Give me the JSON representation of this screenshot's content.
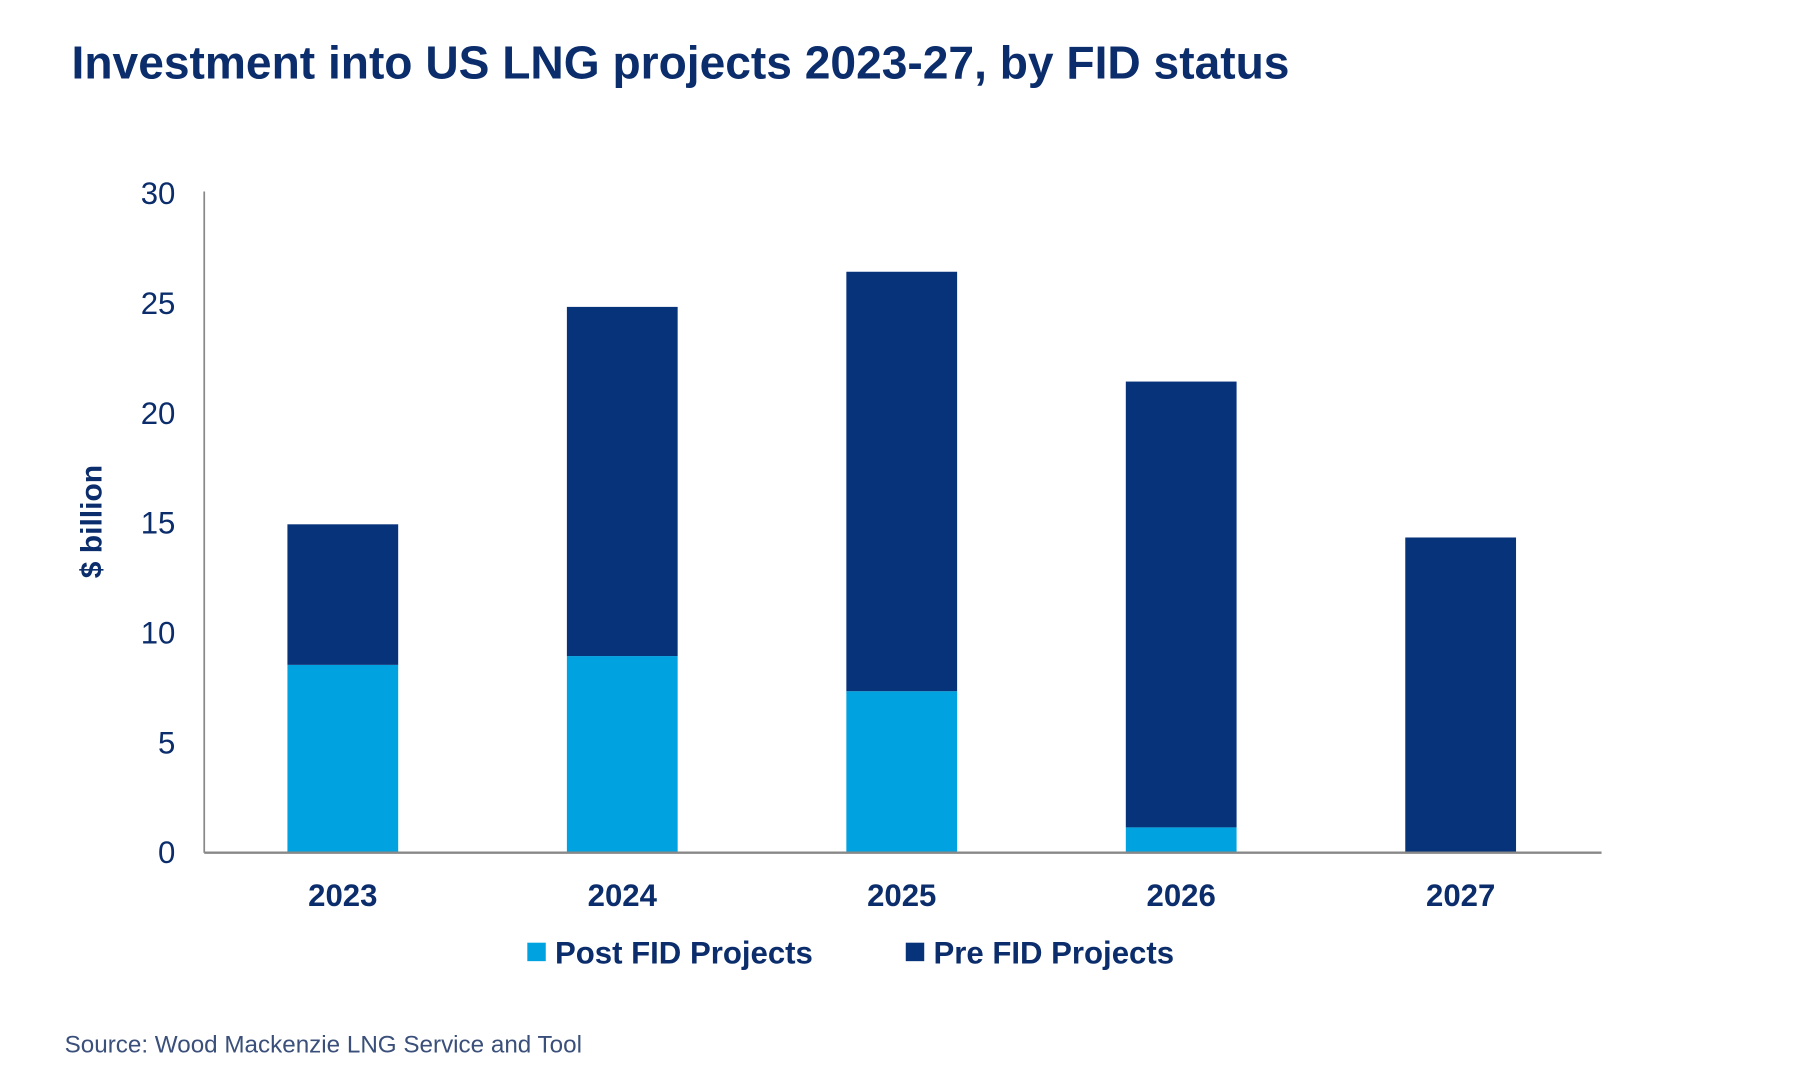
{
  "chart_data": {
    "type": "bar",
    "stacked": true,
    "title": "Investment into US LNG projects 2023-27, by FID status",
    "xlabel": "",
    "ylabel": "$ billion",
    "ylim": [
      0,
      30
    ],
    "yticks": [
      0,
      5,
      10,
      15,
      20,
      25,
      30
    ],
    "categories": [
      "2023",
      "2024",
      "2025",
      "2026",
      "2027"
    ],
    "series": [
      {
        "name": "Post FID Projects",
        "color": "#00a3e0",
        "values": [
          8.5,
          8.9,
          7.3,
          1.1,
          0
        ]
      },
      {
        "name": "Pre FID Projects",
        "color": "#06337a",
        "values": [
          6.4,
          15.9,
          19.1,
          20.3,
          14.3
        ]
      }
    ],
    "grid": false,
    "legend_position": "bottom",
    "source": "Source: Wood Mackenzie LNG Service and Tool"
  }
}
